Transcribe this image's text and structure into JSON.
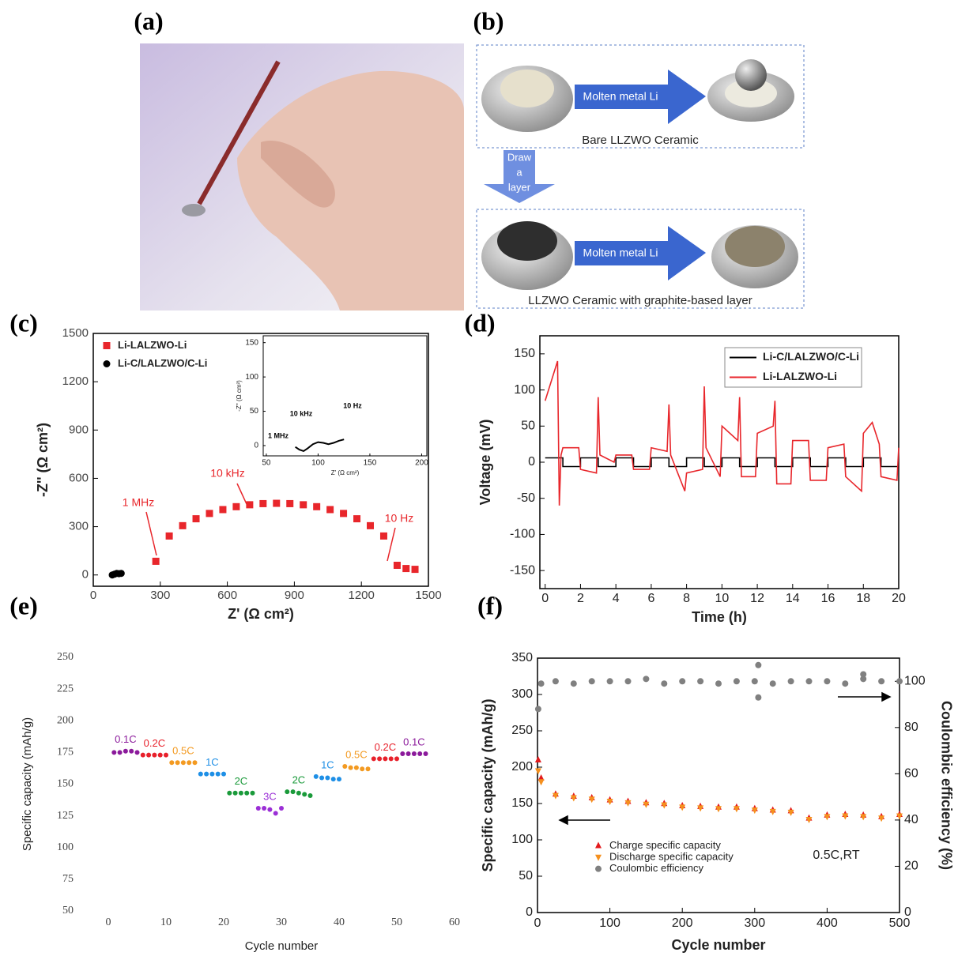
{
  "panel_labels": [
    "(a)",
    "(b)",
    "(c)",
    "(d)",
    "(e)",
    "(f)"
  ],
  "figure_b": {
    "arrow_labels": [
      "Molten metal Li",
      "Molten metal Li"
    ],
    "captions": [
      "Bare LLZWO Ceramic",
      "LLZWO Ceramic  with graphite-based layer"
    ],
    "step_label": [
      "Draw",
      "a",
      "layer"
    ]
  },
  "chart_data": [
    {
      "type": "scatter",
      "x_label": "Z' (Ω cm²)",
      "y_label": "-Z'' (Ω cm²)",
      "xlim": [
        0,
        1500
      ],
      "xticks": [
        0,
        300,
        600,
        900,
        1200,
        1500
      ],
      "ylim": [
        -70,
        1500
      ],
      "yticks": [
        0,
        300,
        600,
        900,
        1200,
        1500
      ],
      "legend": "upper left",
      "annotations": [
        "1 MHz",
        "10 kHz",
        "10 Hz"
      ],
      "annotation_color": "#e8262b",
      "series": [
        {
          "name": "Li-LALZWO-Li",
          "color": "#e8262b",
          "marker": "square",
          "x": [
            280,
            340,
            400,
            460,
            520,
            580,
            640,
            700,
            760,
            820,
            880,
            940,
            1000,
            1060,
            1120,
            1180,
            1240,
            1300,
            1360,
            1400,
            1440
          ],
          "values": [
            85,
            242,
            306,
            349,
            382,
            406,
            424,
            436,
            443,
            445,
            443,
            436,
            424,
            406,
            382,
            349,
            306,
            242,
            60,
            40,
            35
          ]
        },
        {
          "name": "Li-C/LALZWO/C-Li",
          "color": "#000000",
          "marker": "circle",
          "x": [
            85,
            95,
            105,
            115,
            125
          ],
          "values": [
            0,
            5,
            10,
            8,
            10
          ]
        }
      ]
    },
    {
      "type": "line",
      "x_label": "Z' (Ω cm²)",
      "y_label": "-Z'' (Ω cm²)",
      "xlim": [
        47,
        205
      ],
      "xticks": [
        50,
        100,
        150,
        200
      ],
      "ylim": [
        -15,
        160
      ],
      "yticks": [
        0,
        50,
        100,
        150
      ],
      "annotations": [
        "1 MHz",
        "10 kHz",
        "10 Hz"
      ],
      "annotation_color": "#000000",
      "series": [
        {
          "color": "#000000",
          "x": [
            78,
            82,
            86,
            90,
            95,
            100,
            105,
            110,
            115,
            120,
            125
          ],
          "values": [
            -2,
            -6,
            -8,
            -4,
            2,
            5,
            4,
            2,
            4,
            7,
            9
          ]
        }
      ]
    },
    {
      "type": "line",
      "x_label": "Time (h)",
      "y_label": "Voltage (mV)",
      "xlim": [
        -0.3,
        20
      ],
      "xticks": [
        0,
        2,
        4,
        6,
        8,
        10,
        12,
        14,
        16,
        18,
        20
      ],
      "ylim": [
        -175,
        175
      ],
      "yticks": [
        -150,
        -100,
        -50,
        0,
        50,
        100,
        150
      ],
      "legend": "upper right",
      "series": [
        {
          "name": "Li-C/LALZWO/C-Li",
          "color": "#000000",
          "x": [
            0,
            1,
            1,
            2,
            2,
            3,
            3,
            4,
            4,
            5,
            5,
            6,
            6,
            7,
            7,
            8,
            8,
            9,
            9,
            10,
            10,
            11,
            11,
            12,
            12,
            13,
            13,
            14,
            14,
            15,
            15,
            16,
            16,
            17,
            17,
            18,
            18,
            19,
            19,
            20
          ],
          "values": [
            6,
            6,
            -6,
            -6,
            6,
            6,
            -6,
            -6,
            6,
            6,
            -6,
            -6,
            6,
            6,
            -6,
            -6,
            6,
            6,
            -6,
            -6,
            6,
            6,
            -6,
            -6,
            6,
            6,
            -6,
            -6,
            6,
            6,
            -6,
            -6,
            6,
            6,
            -6,
            -6,
            6,
            6,
            -6,
            -6
          ]
        },
        {
          "name": "Li-LALZWO-Li",
          "color": "#e8262b",
          "x": [
            0,
            0.7,
            0.8,
            0.9,
            1,
            1.9,
            2,
            2.9,
            3,
            3.1,
            3.9,
            4,
            4.9,
            5,
            5.9,
            6,
            6.9,
            7,
            7.1,
            7.9,
            8,
            8.9,
            9,
            9.1,
            9.9,
            10,
            10.9,
            11,
            11.1,
            11.9,
            12,
            12.9,
            13,
            13.1,
            13.9,
            14,
            14.9,
            15,
            15.9,
            16,
            16.9,
            17,
            17.9,
            18,
            18.5,
            18.9,
            19,
            19.9,
            20
          ],
          "values": [
            85,
            140,
            -60,
            10,
            20,
            20,
            -10,
            -15,
            90,
            10,
            0,
            10,
            10,
            -10,
            -10,
            20,
            15,
            80,
            10,
            -40,
            -15,
            -10,
            105,
            20,
            -20,
            50,
            30,
            90,
            -20,
            -20,
            40,
            50,
            85,
            -30,
            -30,
            30,
            30,
            -25,
            -25,
            20,
            25,
            -20,
            -40,
            40,
            55,
            25,
            -20,
            -25,
            20
          ]
        }
      ]
    },
    {
      "type": "scatter",
      "x_label": "Cycle number",
      "y_label": "Specific capacity (mAh/g)",
      "xlim": [
        0,
        60
      ],
      "xticks": [
        0,
        10,
        20,
        30,
        40,
        50,
        60
      ],
      "ylim": [
        50,
        250
      ],
      "yticks": [
        50,
        75,
        100,
        125,
        150,
        175,
        200,
        225,
        250
      ],
      "series": [
        {
          "name": "0.1C",
          "color": "#8b1a9b",
          "marker": "circle",
          "x": [
            1,
            2,
            3,
            4,
            5
          ],
          "values": [
            175,
            175,
            176,
            176,
            175
          ]
        },
        {
          "name": "0.2C",
          "color": "#e8212b",
          "marker": "circle",
          "x": [
            6,
            7,
            8,
            9,
            10
          ],
          "values": [
            173,
            173,
            173,
            173,
            173
          ]
        },
        {
          "name": "0.5C",
          "color": "#f39a21",
          "marker": "circle",
          "x": [
            11,
            12,
            13,
            14,
            15
          ],
          "values": [
            167,
            167,
            167,
            167,
            167
          ]
        },
        {
          "name": "1C",
          "color": "#1e8fe6",
          "marker": "circle",
          "x": [
            16,
            17,
            18,
            19,
            20
          ],
          "values": [
            158,
            158,
            158,
            158,
            158
          ]
        },
        {
          "name": "2C",
          "color": "#1a9a3a",
          "marker": "circle",
          "x": [
            21,
            22,
            23,
            24,
            25
          ],
          "values": [
            143,
            143,
            143,
            143,
            143
          ]
        },
        {
          "name": "3C",
          "color": "#9b2fd6",
          "marker": "circle",
          "x": [
            26,
            27,
            28,
            29,
            30
          ],
          "values": [
            131,
            131,
            130,
            127,
            131
          ]
        },
        {
          "name": "2C",
          "color": "#1a9a3a",
          "marker": "circle",
          "x": [
            31,
            32,
            33,
            34,
            35
          ],
          "values": [
            144,
            144,
            143,
            142,
            141
          ]
        },
        {
          "name": "1C",
          "color": "#1e8fe6",
          "marker": "circle",
          "x": [
            36,
            37,
            38,
            39,
            40
          ],
          "values": [
            156,
            155,
            155,
            154,
            154
          ]
        },
        {
          "name": "0.5C",
          "color": "#f39a21",
          "marker": "circle",
          "x": [
            41,
            42,
            43,
            44,
            45
          ],
          "values": [
            164,
            163,
            163,
            162,
            162
          ]
        },
        {
          "name": "0.2C",
          "color": "#e8212b",
          "marker": "circle",
          "x": [
            46,
            47,
            48,
            49,
            50
          ],
          "values": [
            170,
            170,
            170,
            170,
            170
          ]
        },
        {
          "name": "0.1C",
          "color": "#8b1a9b",
          "marker": "circle",
          "x": [
            51,
            52,
            53,
            54,
            55
          ],
          "values": [
            174,
            174,
            174,
            174,
            174
          ]
        }
      ]
    },
    {
      "type": "scatter",
      "x_label": "Cycle number",
      "y_label": "Specific capacity (mAh/g)",
      "y2_label": "Coulombic efficiency (%)",
      "xlim": [
        0,
        500
      ],
      "xticks": [
        0,
        100,
        200,
        300,
        400,
        500
      ],
      "ylim": [
        0,
        350
      ],
      "yticks": [
        0,
        50,
        100,
        150,
        200,
        250,
        300,
        350
      ],
      "y2lim": [
        0,
        110
      ],
      "y2ticks": [
        0,
        20,
        40,
        60,
        80,
        100
      ],
      "legend": "lower left",
      "annotations": [
        "0.5C,RT"
      ],
      "annotation_color": "#222222",
      "series": [
        {
          "name": "Charge specific capacity",
          "color": "#e31a1c",
          "marker": "triangle-up",
          "x": [
            1,
            5,
            25,
            50,
            75,
            100,
            125,
            150,
            175,
            200,
            225,
            250,
            275,
            300,
            325,
            350,
            375,
            400,
            425,
            450,
            475,
            500
          ],
          "values": [
            210,
            185,
            163,
            160,
            158,
            155,
            153,
            151,
            150,
            147,
            146,
            145,
            145,
            143,
            141,
            140,
            130,
            134,
            135,
            134,
            132,
            135
          ]
        },
        {
          "name": "Discharge specific capacity",
          "color": "#f5901e",
          "marker": "triangle-down",
          "x": [
            1,
            5,
            25,
            50,
            75,
            100,
            125,
            150,
            175,
            200,
            225,
            250,
            275,
            300,
            325,
            350,
            375,
            400,
            425,
            450,
            475,
            500
          ],
          "values": [
            195,
            180,
            161,
            158,
            156,
            153,
            151,
            149,
            148,
            145,
            144,
            143,
            143,
            141,
            139,
            138,
            128,
            132,
            133,
            132,
            130,
            133
          ]
        },
        {
          "name": "Coulombic efficiency",
          "color": "#808080",
          "marker": "circle",
          "axis": "y2",
          "x": [
            1,
            5,
            25,
            50,
            75,
            100,
            125,
            150,
            175,
            200,
            225,
            250,
            275,
            300,
            325,
            350,
            375,
            400,
            425,
            450,
            475,
            500,
            305,
            305,
            450
          ],
          "values": [
            88,
            99,
            100,
            99,
            100,
            100,
            100,
            101,
            99,
            100,
            100,
            99,
            100,
            100,
            99,
            100,
            100,
            100,
            99,
            101,
            100,
            100,
            107,
            93,
            103
          ]
        }
      ]
    }
  ]
}
